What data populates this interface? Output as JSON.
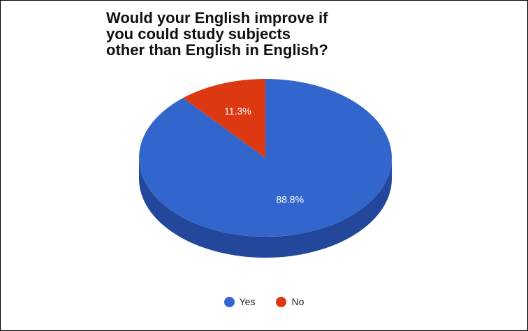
{
  "chart_data": {
    "type": "pie",
    "title_lines": [
      "Would your English improve if",
      "you could study subjects",
      "other than English in English?"
    ],
    "slices": [
      {
        "label": "Yes",
        "value": 88.8,
        "display": "88.8%",
        "color": "#3366cc",
        "side_color": "#22479b"
      },
      {
        "label": "No",
        "value": 11.3,
        "display": "11.3%",
        "color": "#dc3912",
        "side_color": "#9a2810"
      }
    ],
    "style": "3d",
    "legend": {
      "position": "bottom"
    }
  }
}
